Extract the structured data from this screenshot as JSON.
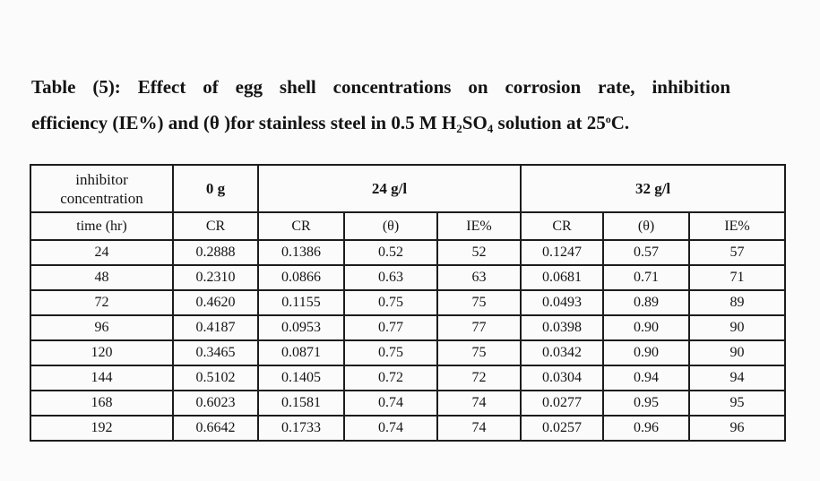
{
  "title": {
    "line1": "Table (5): Effect of egg shell concentrations on corrosion rate, inhibition",
    "line2": {
      "part1": "efficiency (IE%) and (θ )for stainless steel in 0.5 M H",
      "sub1": "2",
      "part2": "SO",
      "sub2": "4",
      "part3": " solution at 25",
      "sup1": "o",
      "part4": "C."
    }
  },
  "table": {
    "header": {
      "inhibitor_concentration": "inhibitor concentration",
      "conc_0g": "0 g",
      "conc_24gl": "24 g/l",
      "conc_32gl": "32 g/l"
    },
    "columns": [
      "time (hr)",
      "CR",
      "CR",
      "(θ)",
      "IE%",
      "CR",
      "(θ)",
      "IE%"
    ],
    "rows": [
      [
        "24",
        "0.2888",
        "0.1386",
        "0.52",
        "52",
        "0.1247",
        "0.57",
        "57"
      ],
      [
        "48",
        "0.2310",
        "0.0866",
        "0.63",
        "63",
        "0.0681",
        "0.71",
        "71"
      ],
      [
        "72",
        "0.4620",
        "0.1155",
        "0.75",
        "75",
        "0.0493",
        "0.89",
        "89"
      ],
      [
        "96",
        "0.4187",
        "0.0953",
        "0.77",
        "77",
        "0.0398",
        "0.90",
        "90"
      ],
      [
        "120",
        "0.3465",
        "0.0871",
        "0.75",
        "75",
        "0.0342",
        "0.90",
        "90"
      ],
      [
        "144",
        "0.5102",
        "0.1405",
        "0.72",
        "72",
        "0.0304",
        "0.94",
        "94"
      ],
      [
        "168",
        "0.6023",
        "0.1581",
        "0.74",
        "74",
        "0.0277",
        "0.95",
        "95"
      ],
      [
        "192",
        "0.6642",
        "0.1733",
        "0.74",
        "74",
        "0.0257",
        "0.96",
        "96"
      ]
    ]
  },
  "colors": {
    "background": "#fbfbfb",
    "text": "#141414",
    "border": "#1c1c1c"
  }
}
